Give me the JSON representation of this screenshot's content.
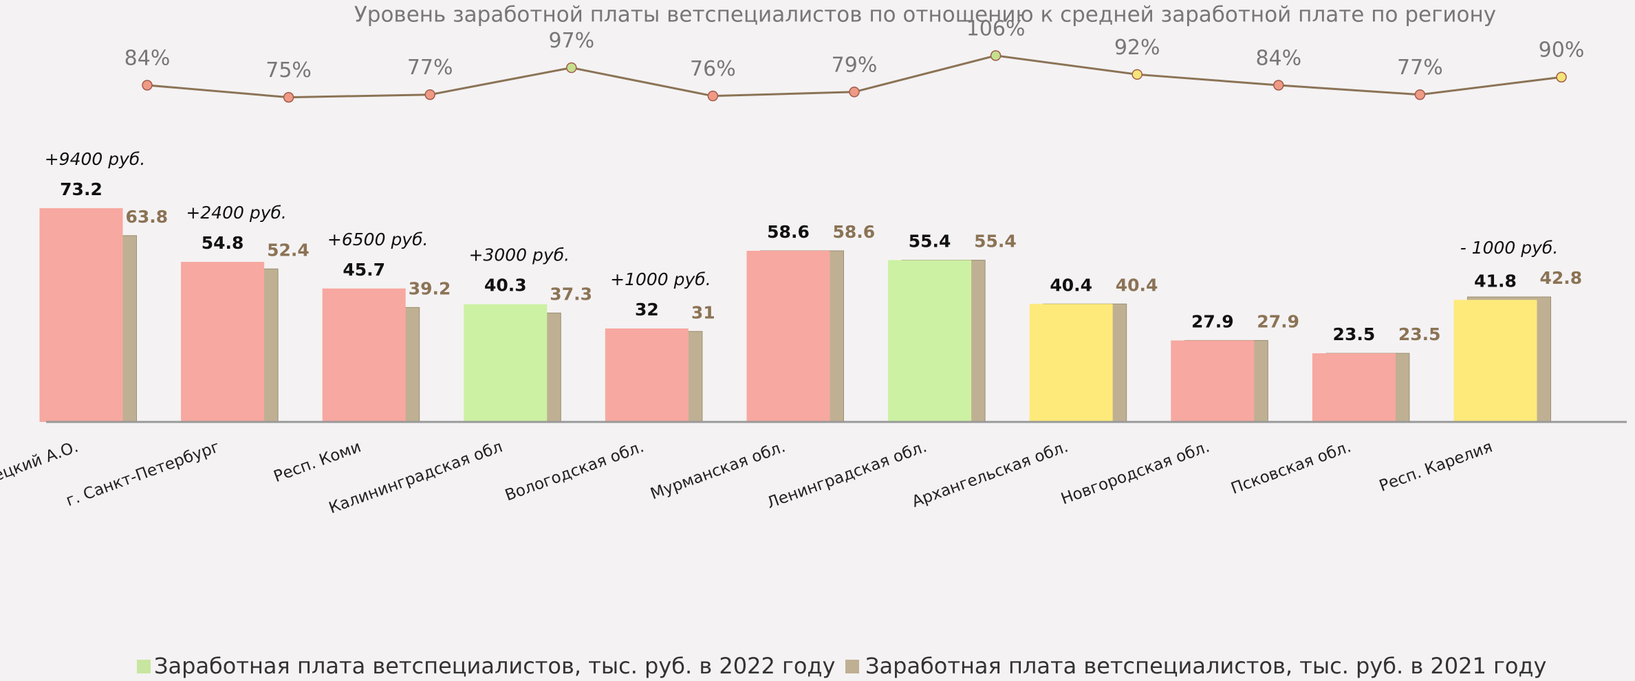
{
  "chart_data": {
    "type": "bar",
    "title": "Уровень заработной платы ветспециалистов по отношению к средней заработной плате по региону",
    "categories": [
      "Ненецкий А.О.",
      "г. Санкт-Петербург",
      "Респ. Коми",
      "Калининградская обл",
      "Вологодская обл.",
      "Мурманская обл.",
      "Ленинградская обл.",
      "Архангельская обл.",
      "Новгородская обл.",
      "Псковская обл.",
      "Респ. Карелия"
    ],
    "series": [
      {
        "name": "Заработная плата ветспециалистов, тыс. руб. в 2022 году",
        "color": "#c8e6a0",
        "point_colors": [
          "#f7a8a0",
          "#f7a8a0",
          "#f7a8a0",
          "#ccf1a3",
          "#f7a8a0",
          "#f7a8a0",
          "#ccf1a3",
          "#fdea7b",
          "#f7a8a0",
          "#f7a8a0",
          "#fdea7b"
        ],
        "values": [
          73.2,
          54.8,
          45.7,
          40.3,
          32,
          58.6,
          55.4,
          40.4,
          27.9,
          23.5,
          41.8
        ]
      },
      {
        "name": "Заработная плата ветспециалистов, тыс. руб. в 2021 году",
        "color": "#bfb093",
        "values": [
          63.8,
          52.4,
          39.2,
          37.3,
          31,
          58.6,
          55.4,
          40.4,
          27.9,
          23.5,
          42.8
        ]
      }
    ],
    "annotations": [
      "+9400 руб.",
      "+2400 руб.",
      "+6500 руб.",
      "+3000 руб.",
      "+1000 руб.",
      null,
      null,
      null,
      null,
      null,
      "- 1000 руб."
    ],
    "line": {
      "type": "line",
      "color": "#8b7355",
      "point_colors": [
        "#ee9a85",
        "#ee9a85",
        "#ee9a85",
        "#c4e08e",
        "#ee9a85",
        "#ee9a85",
        "#c4e08e",
        "#f6e47a",
        "#ee9a85",
        "#ee9a85",
        "#f6e47a"
      ],
      "values": [
        84,
        75,
        77,
        97,
        76,
        79,
        106,
        92,
        84,
        77,
        90
      ],
      "value_labels": [
        "84%",
        "75%",
        "77%",
        "97%",
        "76%",
        "79%",
        "106%",
        "92%",
        "84%",
        "77%",
        "90%"
      ]
    }
  }
}
